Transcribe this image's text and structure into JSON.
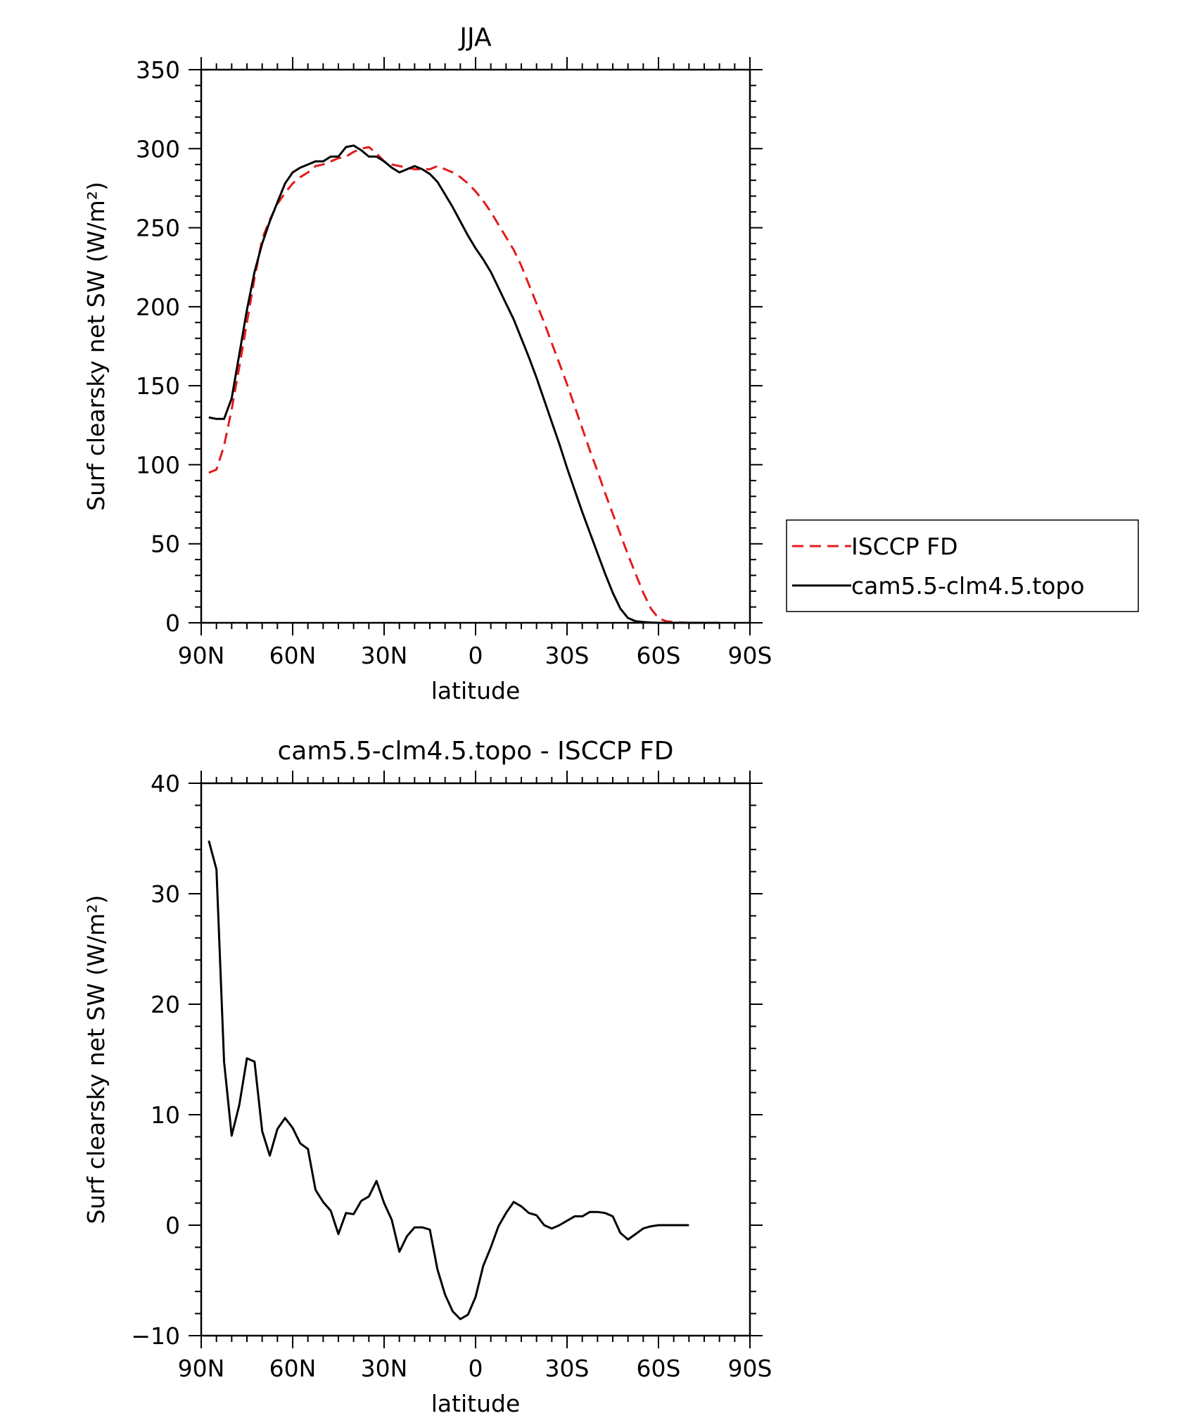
{
  "chart_data": [
    {
      "type": "line",
      "title": "JJA",
      "xlabel": "latitude",
      "ylabel": "Surf clearsky net SW (W/m²)",
      "xlim": [
        90,
        -90
      ],
      "ylim": [
        0,
        350
      ],
      "xticks": [
        {
          "value": 90,
          "label": "90N"
        },
        {
          "value": 60,
          "label": "60N"
        },
        {
          "value": 30,
          "label": "30N"
        },
        {
          "value": 0,
          "label": "0"
        },
        {
          "value": -30,
          "label": "30S"
        },
        {
          "value": -60,
          "label": "60S"
        },
        {
          "value": -90,
          "label": "90S"
        }
      ],
      "yticks": [
        0,
        50,
        100,
        150,
        200,
        250,
        300,
        350
      ],
      "legend": {
        "placement": "right"
      },
      "series": [
        {
          "name": "ISCCP FD",
          "color": "#e41a1c",
          "style": "dashed",
          "points": [
            [
              87.5,
              95
            ],
            [
              85,
              97
            ],
            [
              82.5,
              112
            ],
            [
              80,
              135
            ],
            [
              77.5,
              162
            ],
            [
              75,
              190
            ],
            [
              72.5,
              218
            ],
            [
              70,
              243
            ],
            [
              67.5,
              255
            ],
            [
              65,
              265
            ],
            [
              62.5,
              272
            ],
            [
              60,
              278
            ],
            [
              57.5,
              282
            ],
            [
              55,
              285
            ],
            [
              52.5,
              289
            ],
            [
              50,
              290
            ],
            [
              47.5,
              292
            ],
            [
              45,
              294
            ],
            [
              42.5,
              295
            ],
            [
              40,
              298
            ],
            [
              37.5,
              300
            ],
            [
              35,
              301
            ],
            [
              32.5,
              297
            ],
            [
              30,
              292
            ],
            [
              27.5,
              290
            ],
            [
              25,
              289
            ],
            [
              22.5,
              288
            ],
            [
              20,
              287
            ],
            [
              17.5,
              287
            ],
            [
              15,
              287
            ],
            [
              12.5,
              289
            ],
            [
              10,
              287
            ],
            [
              7.5,
              285
            ],
            [
              5,
              282
            ],
            [
              2.5,
              278
            ],
            [
              0,
              273
            ],
            [
              -2.5,
              267
            ],
            [
              -5,
              260
            ],
            [
              -7.5,
              252
            ],
            [
              -10,
              244
            ],
            [
              -12.5,
              236
            ],
            [
              -15,
              226
            ],
            [
              -17.5,
              214
            ],
            [
              -20,
              202
            ],
            [
              -22.5,
              190
            ],
            [
              -25,
              177
            ],
            [
              -27.5,
              164
            ],
            [
              -30,
              151
            ],
            [
              -32.5,
              137
            ],
            [
              -35,
              123
            ],
            [
              -37.5,
              109
            ],
            [
              -40,
              96
            ],
            [
              -42.5,
              82
            ],
            [
              -45,
              69
            ],
            [
              -47.5,
              56
            ],
            [
              -50,
              43
            ],
            [
              -52.5,
              31
            ],
            [
              -55,
              19
            ],
            [
              -57.5,
              9
            ],
            [
              -60,
              3
            ],
            [
              -62.5,
              1
            ],
            [
              -65,
              0.5
            ],
            [
              -67.5,
              0.2
            ],
            [
              -70,
              0
            ],
            [
              -72.5,
              0
            ],
            [
              -75,
              0
            ],
            [
              -77.5,
              0
            ],
            [
              -80,
              0
            ]
          ]
        },
        {
          "name": "cam5.5-clm4.5.topo",
          "color": "#000000",
          "style": "solid",
          "points": [
            [
              87.5,
              130
            ],
            [
              85,
              129
            ],
            [
              82.5,
              129
            ],
            [
              80,
              142
            ],
            [
              77.5,
              170
            ],
            [
              75,
              198
            ],
            [
              72.5,
              222
            ],
            [
              70,
              240
            ],
            [
              67.5,
              254
            ],
            [
              65,
              266
            ],
            [
              62.5,
              278
            ],
            [
              60,
              285
            ],
            [
              57.5,
              288
            ],
            [
              55,
              290
            ],
            [
              52.5,
              292
            ],
            [
              50,
              292
            ],
            [
              47.5,
              295
            ],
            [
              45,
              295
            ],
            [
              42.5,
              301
            ],
            [
              40,
              302
            ],
            [
              37.5,
              299
            ],
            [
              35,
              295
            ],
            [
              32.5,
              295
            ],
            [
              30,
              292
            ],
            [
              27.5,
              288
            ],
            [
              25,
              285
            ],
            [
              22.5,
              287
            ],
            [
              20,
              289
            ],
            [
              17.5,
              287
            ],
            [
              15,
              284
            ],
            [
              12.5,
              279
            ],
            [
              10,
              271
            ],
            [
              7.5,
              263
            ],
            [
              5,
              254
            ],
            [
              2.5,
              245
            ],
            [
              0,
              237
            ],
            [
              -2.5,
              230
            ],
            [
              -5,
              222
            ],
            [
              -7.5,
              212
            ],
            [
              -10,
              202
            ],
            [
              -12.5,
              192
            ],
            [
              -15,
              180
            ],
            [
              -17.5,
              168
            ],
            [
              -20,
              155
            ],
            [
              -22.5,
              141
            ],
            [
              -25,
              127
            ],
            [
              -27.5,
              113
            ],
            [
              -30,
              98
            ],
            [
              -32.5,
              84
            ],
            [
              -35,
              70
            ],
            [
              -37.5,
              57
            ],
            [
              -40,
              44
            ],
            [
              -42.5,
              31
            ],
            [
              -45,
              19
            ],
            [
              -47.5,
              9
            ],
            [
              -50,
              3
            ],
            [
              -52.5,
              1
            ],
            [
              -55,
              0.5
            ],
            [
              -57.5,
              0.2
            ],
            [
              -60,
              0
            ],
            [
              -62.5,
              0
            ],
            [
              -65,
              0
            ],
            [
              -67.5,
              0
            ],
            [
              -70,
              0
            ],
            [
              -72.5,
              0
            ],
            [
              -75,
              0
            ],
            [
              -77.5,
              0
            ],
            [
              -80,
              0
            ]
          ]
        }
      ]
    },
    {
      "type": "line",
      "title": "cam5.5-clm4.5.topo - ISCCP FD",
      "xlabel": "latitude",
      "ylabel": "Surf clearsky net SW (W/m²)",
      "xlim": [
        90,
        -90
      ],
      "ylim": [
        -10,
        40
      ],
      "xticks": [
        {
          "value": 90,
          "label": "90N"
        },
        {
          "value": 60,
          "label": "60N"
        },
        {
          "value": 30,
          "label": "30N"
        },
        {
          "value": 0,
          "label": "0"
        },
        {
          "value": -30,
          "label": "30S"
        },
        {
          "value": -60,
          "label": "60S"
        },
        {
          "value": -90,
          "label": "90S"
        }
      ],
      "yticks": [
        -10,
        0,
        10,
        20,
        30,
        40
      ],
      "series": [
        {
          "color": "#000000",
          "style": "solid",
          "points": [
            [
              87.5,
              34.8
            ],
            [
              85,
              32.2
            ],
            [
              82.5,
              14.8
            ],
            [
              80,
              8.1
            ],
            [
              77.5,
              10.9
            ],
            [
              75,
              15.1
            ],
            [
              72.5,
              14.8
            ],
            [
              70,
              8.5
            ],
            [
              67.5,
              6.3
            ],
            [
              65,
              8.7
            ],
            [
              62.5,
              9.7
            ],
            [
              60,
              8.8
            ],
            [
              57.5,
              7.4
            ],
            [
              55,
              6.9
            ],
            [
              52.5,
              3.2
            ],
            [
              50,
              2.1
            ],
            [
              47.5,
              1.3
            ],
            [
              45,
              -0.8
            ],
            [
              42.5,
              1.1
            ],
            [
              40,
              1.0
            ],
            [
              37.5,
              2.2
            ],
            [
              35,
              2.6
            ],
            [
              32.5,
              4.0
            ],
            [
              30,
              2.0
            ],
            [
              27.5,
              0.5
            ],
            [
              25,
              -2.4
            ],
            [
              22.5,
              -1.0
            ],
            [
              20,
              -0.2
            ],
            [
              17.5,
              -0.2
            ],
            [
              15,
              -0.4
            ],
            [
              12.5,
              -4.0
            ],
            [
              10,
              -6.3
            ],
            [
              7.5,
              -7.8
            ],
            [
              5,
              -8.5
            ],
            [
              2.5,
              -8.1
            ],
            [
              0,
              -6.5
            ],
            [
              -2.5,
              -3.7
            ],
            [
              -5,
              -2.0
            ],
            [
              -7.5,
              -0.1
            ],
            [
              -10,
              1.1
            ],
            [
              -12.5,
              2.1
            ],
            [
              -15,
              1.7
            ],
            [
              -17.5,
              1.1
            ],
            [
              -20,
              0.9
            ],
            [
              -22.5,
              0.0
            ],
            [
              -25,
              -0.3
            ],
            [
              -27.5,
              0.0
            ],
            [
              -30,
              0.4
            ],
            [
              -32.5,
              0.8
            ],
            [
              -35,
              0.8
            ],
            [
              -37.5,
              1.2
            ],
            [
              -40,
              1.2
            ],
            [
              -42.5,
              1.1
            ],
            [
              -45,
              0.8
            ],
            [
              -47.5,
              -0.7
            ],
            [
              -50,
              -1.3
            ],
            [
              -52.5,
              -0.8
            ],
            [
              -55,
              -0.3
            ],
            [
              -57.5,
              -0.1
            ],
            [
              -60,
              0
            ],
            [
              -62.5,
              0
            ],
            [
              -65,
              0
            ],
            [
              -67.5,
              0
            ],
            [
              -70,
              0
            ]
          ]
        }
      ]
    }
  ]
}
